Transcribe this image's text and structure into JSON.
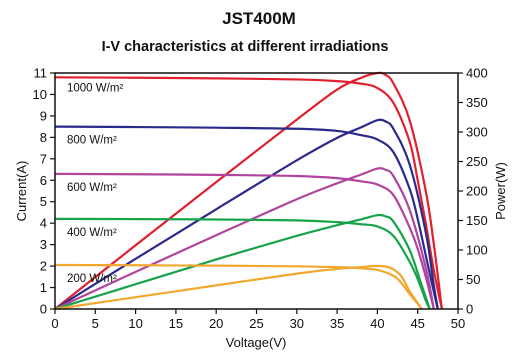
{
  "chart_data": {
    "type": "line",
    "title": "JST400M",
    "subtitle": "I-V characteristics at different irradiations",
    "xlabel": "Voltage(V)",
    "ylabel_left": "Current(A)",
    "ylabel_right": "Power(W)",
    "xlim": [
      0,
      50
    ],
    "ylim_left": [
      0,
      11
    ],
    "ylim_right": [
      0,
      400
    ],
    "x_ticks": [
      "0",
      "5",
      "10",
      "15",
      "20",
      "25",
      "30",
      "35",
      "40",
      "45",
      "50"
    ],
    "y_left_ticks": [
      "0",
      "1",
      "2",
      "3",
      "4",
      "5",
      "6",
      "7",
      "8",
      "9",
      "10",
      "11"
    ],
    "y_right_ticks": [
      "0",
      "50",
      "100",
      "150",
      "200",
      "250",
      "300",
      "350",
      "400"
    ],
    "grid": false,
    "series": [
      {
        "name": "1000 W/m²",
        "color": "#e0202e",
        "iv": [
          [
            0,
            10.8
          ],
          [
            10,
            10.78
          ],
          [
            20,
            10.75
          ],
          [
            30,
            10.7
          ],
          [
            35,
            10.62
          ],
          [
            38,
            10.5
          ],
          [
            40,
            10.3
          ],
          [
            42,
            9.6
          ],
          [
            44,
            7.8
          ],
          [
            45,
            6.0
          ],
          [
            46,
            4.0
          ],
          [
            47,
            1.8
          ],
          [
            48,
            0
          ]
        ],
        "pv": [
          [
            0,
            0
          ],
          [
            10,
            108
          ],
          [
            20,
            215
          ],
          [
            30,
            321
          ],
          [
            35,
            372
          ],
          [
            38,
            392
          ],
          [
            40,
            400
          ],
          [
            41,
            397
          ],
          [
            42,
            382
          ],
          [
            44,
            320
          ],
          [
            46,
            200
          ],
          [
            47,
            110
          ],
          [
            48,
            0
          ]
        ]
      },
      {
        "name": "800 W/m²",
        "color": "#2a2a8c",
        "iv": [
          [
            0,
            8.5
          ],
          [
            10,
            8.48
          ],
          [
            20,
            8.45
          ],
          [
            30,
            8.4
          ],
          [
            35,
            8.3
          ],
          [
            38,
            8.1
          ],
          [
            40,
            7.9
          ],
          [
            42,
            7.3
          ],
          [
            44,
            5.6
          ],
          [
            45,
            4.2
          ],
          [
            46,
            2.5
          ],
          [
            47,
            0.8
          ],
          [
            47.5,
            0
          ]
        ],
        "pv": [
          [
            0,
            0
          ],
          [
            10,
            85
          ],
          [
            20,
            169
          ],
          [
            30,
            252
          ],
          [
            35,
            290
          ],
          [
            38,
            308
          ],
          [
            40,
            320
          ],
          [
            41,
            318
          ],
          [
            42,
            305
          ],
          [
            44,
            245
          ],
          [
            46,
            130
          ],
          [
            47,
            40
          ],
          [
            47.5,
            0
          ]
        ]
      },
      {
        "name": "600 W/m²",
        "color": "#b0449e",
        "iv": [
          [
            0,
            6.3
          ],
          [
            10,
            6.28
          ],
          [
            20,
            6.25
          ],
          [
            30,
            6.2
          ],
          [
            35,
            6.1
          ],
          [
            38,
            5.95
          ],
          [
            40,
            5.8
          ],
          [
            42,
            5.3
          ],
          [
            44,
            3.8
          ],
          [
            45,
            2.8
          ],
          [
            46,
            1.5
          ],
          [
            47,
            0
          ]
        ],
        "pv": [
          [
            0,
            0
          ],
          [
            10,
            63
          ],
          [
            20,
            125
          ],
          [
            30,
            186
          ],
          [
            35,
            213
          ],
          [
            38,
            228
          ],
          [
            40,
            238
          ],
          [
            41,
            236
          ],
          [
            42,
            225
          ],
          [
            44,
            168
          ],
          [
            46,
            70
          ],
          [
            47,
            0
          ]
        ]
      },
      {
        "name": "400 W/m²",
        "color": "#16a34a",
        "iv": [
          [
            0,
            4.2
          ],
          [
            10,
            4.19
          ],
          [
            20,
            4.17
          ],
          [
            30,
            4.13
          ],
          [
            35,
            4.05
          ],
          [
            38,
            3.95
          ],
          [
            40,
            3.85
          ],
          [
            42,
            3.4
          ],
          [
            44,
            2.2
          ],
          [
            45,
            1.4
          ],
          [
            46,
            0.4
          ],
          [
            46.5,
            0
          ]
        ],
        "pv": [
          [
            0,
            0
          ],
          [
            10,
            42
          ],
          [
            20,
            84
          ],
          [
            30,
            124
          ],
          [
            35,
            142
          ],
          [
            38,
            152
          ],
          [
            40,
            159
          ],
          [
            41,
            157
          ],
          [
            42,
            148
          ],
          [
            44,
            100
          ],
          [
            45.5,
            40
          ],
          [
            46.5,
            0
          ]
        ]
      },
      {
        "name": "200 W/m²",
        "color": "#f0a82e",
        "iv": [
          [
            0,
            2.05
          ],
          [
            10,
            2.04
          ],
          [
            20,
            2.02
          ],
          [
            30,
            1.99
          ],
          [
            35,
            1.95
          ],
          [
            38,
            1.9
          ],
          [
            40,
            1.82
          ],
          [
            42,
            1.55
          ],
          [
            43,
            1.2
          ],
          [
            44,
            0.7
          ],
          [
            45,
            0.25
          ],
          [
            45.5,
            0
          ]
        ],
        "pv": [
          [
            0,
            0
          ],
          [
            10,
            20
          ],
          [
            20,
            40
          ],
          [
            30,
            60
          ],
          [
            35,
            68
          ],
          [
            38,
            71
          ],
          [
            39.5,
            73
          ],
          [
            41,
            72
          ],
          [
            42,
            67
          ],
          [
            43,
            55
          ],
          [
            44,
            30
          ],
          [
            45,
            10
          ],
          [
            45.5,
            0
          ]
        ]
      }
    ]
  }
}
